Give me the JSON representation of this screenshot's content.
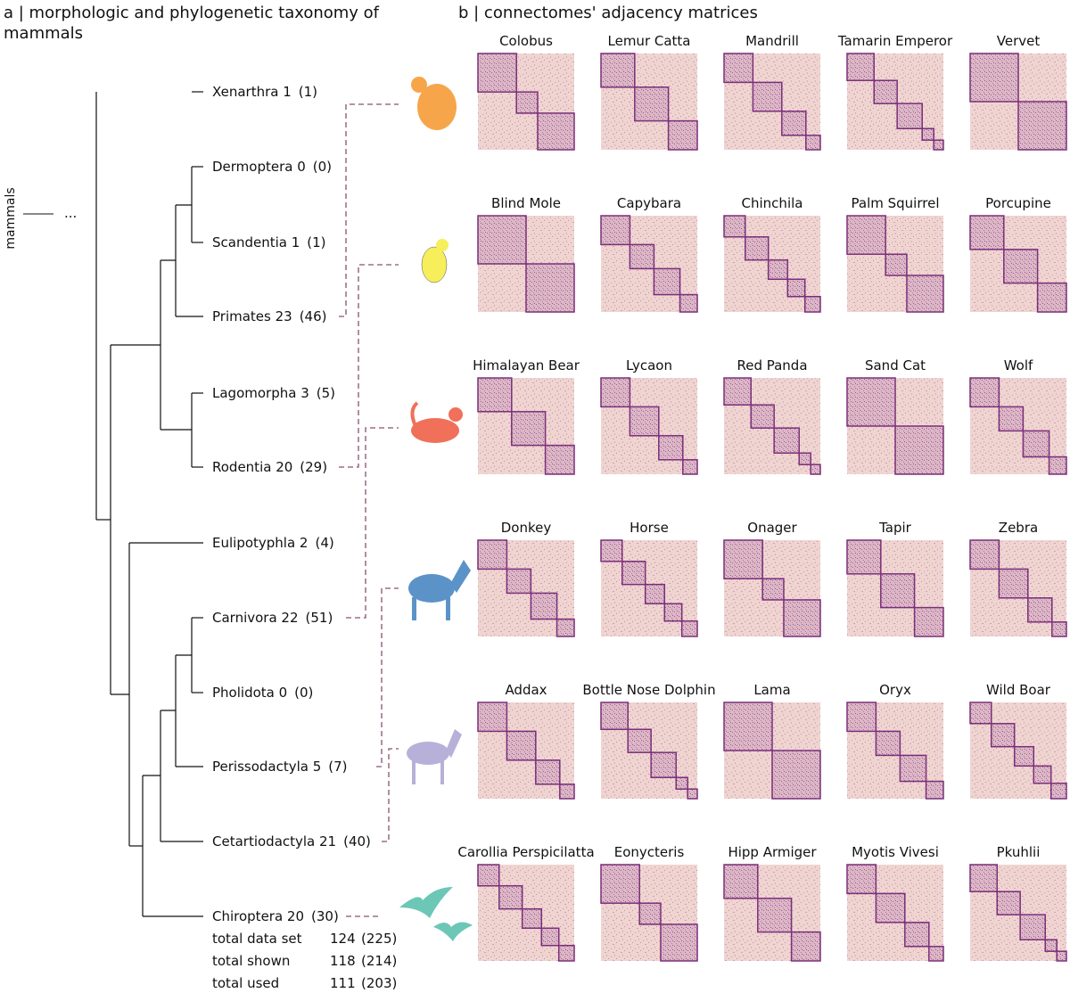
{
  "panel_a": {
    "title": "a | morphologic and phylogenetic taxonomy of mammals",
    "root": "mammals",
    "ellipsis": "...",
    "taxa": [
      {
        "label": "Xenarthra 1",
        "count": "(1)"
      },
      {
        "label": "Dermoptera 0",
        "count": "(0)"
      },
      {
        "label": "Scandentia 1",
        "count": "(1)"
      },
      {
        "label": "Primates 23",
        "count": "(46)"
      },
      {
        "label": "Lagomorpha 3",
        "count": "(5)"
      },
      {
        "label": "Rodentia 20",
        "count": "(29)"
      },
      {
        "label": "Eulipotyphla 2",
        "count": "(4)"
      },
      {
        "label": "Carnivora 22",
        "count": "(51)"
      },
      {
        "label": "Pholidota 0",
        "count": "(0)"
      },
      {
        "label": "Perissodactyla 5",
        "count": "(7)"
      },
      {
        "label": "Cetartiodactyla 21",
        "count": "(40)"
      },
      {
        "label": "Chiroptera 20",
        "count": "(30)"
      }
    ],
    "totals": [
      {
        "label": "total data set",
        "shown": "124",
        "count": "(225)"
      },
      {
        "label": "total shown",
        "shown": "118",
        "count": "(214)"
      },
      {
        "label": "total used",
        "shown": "111",
        "count": "(203)"
      }
    ]
  },
  "panel_b": {
    "title": "b | connectomes' adjacency matrices",
    "groups": [
      [
        "Colobus",
        "Lemur Catta",
        "Mandrill",
        "Tamarin Emperor",
        "Vervet"
      ],
      [
        "Blind Mole",
        "Capybara",
        "Chinchila",
        "Palm Squirrel",
        "Porcupine"
      ],
      [
        "Himalayan Bear",
        "Lycaon",
        "Red Panda",
        "Sand Cat",
        "Wolf"
      ],
      [
        "Donkey",
        "Horse",
        "Onager",
        "Tapir",
        "Zebra"
      ],
      [
        "Addax",
        "Bottle Nose Dolphin",
        "Lama",
        "Oryx",
        "Wild Boar"
      ],
      [
        "Carollia Perspicilatta",
        "Eonycteris",
        "Hipp Armiger",
        "Myotis Vivesi",
        "Pkuhlii"
      ]
    ]
  }
}
